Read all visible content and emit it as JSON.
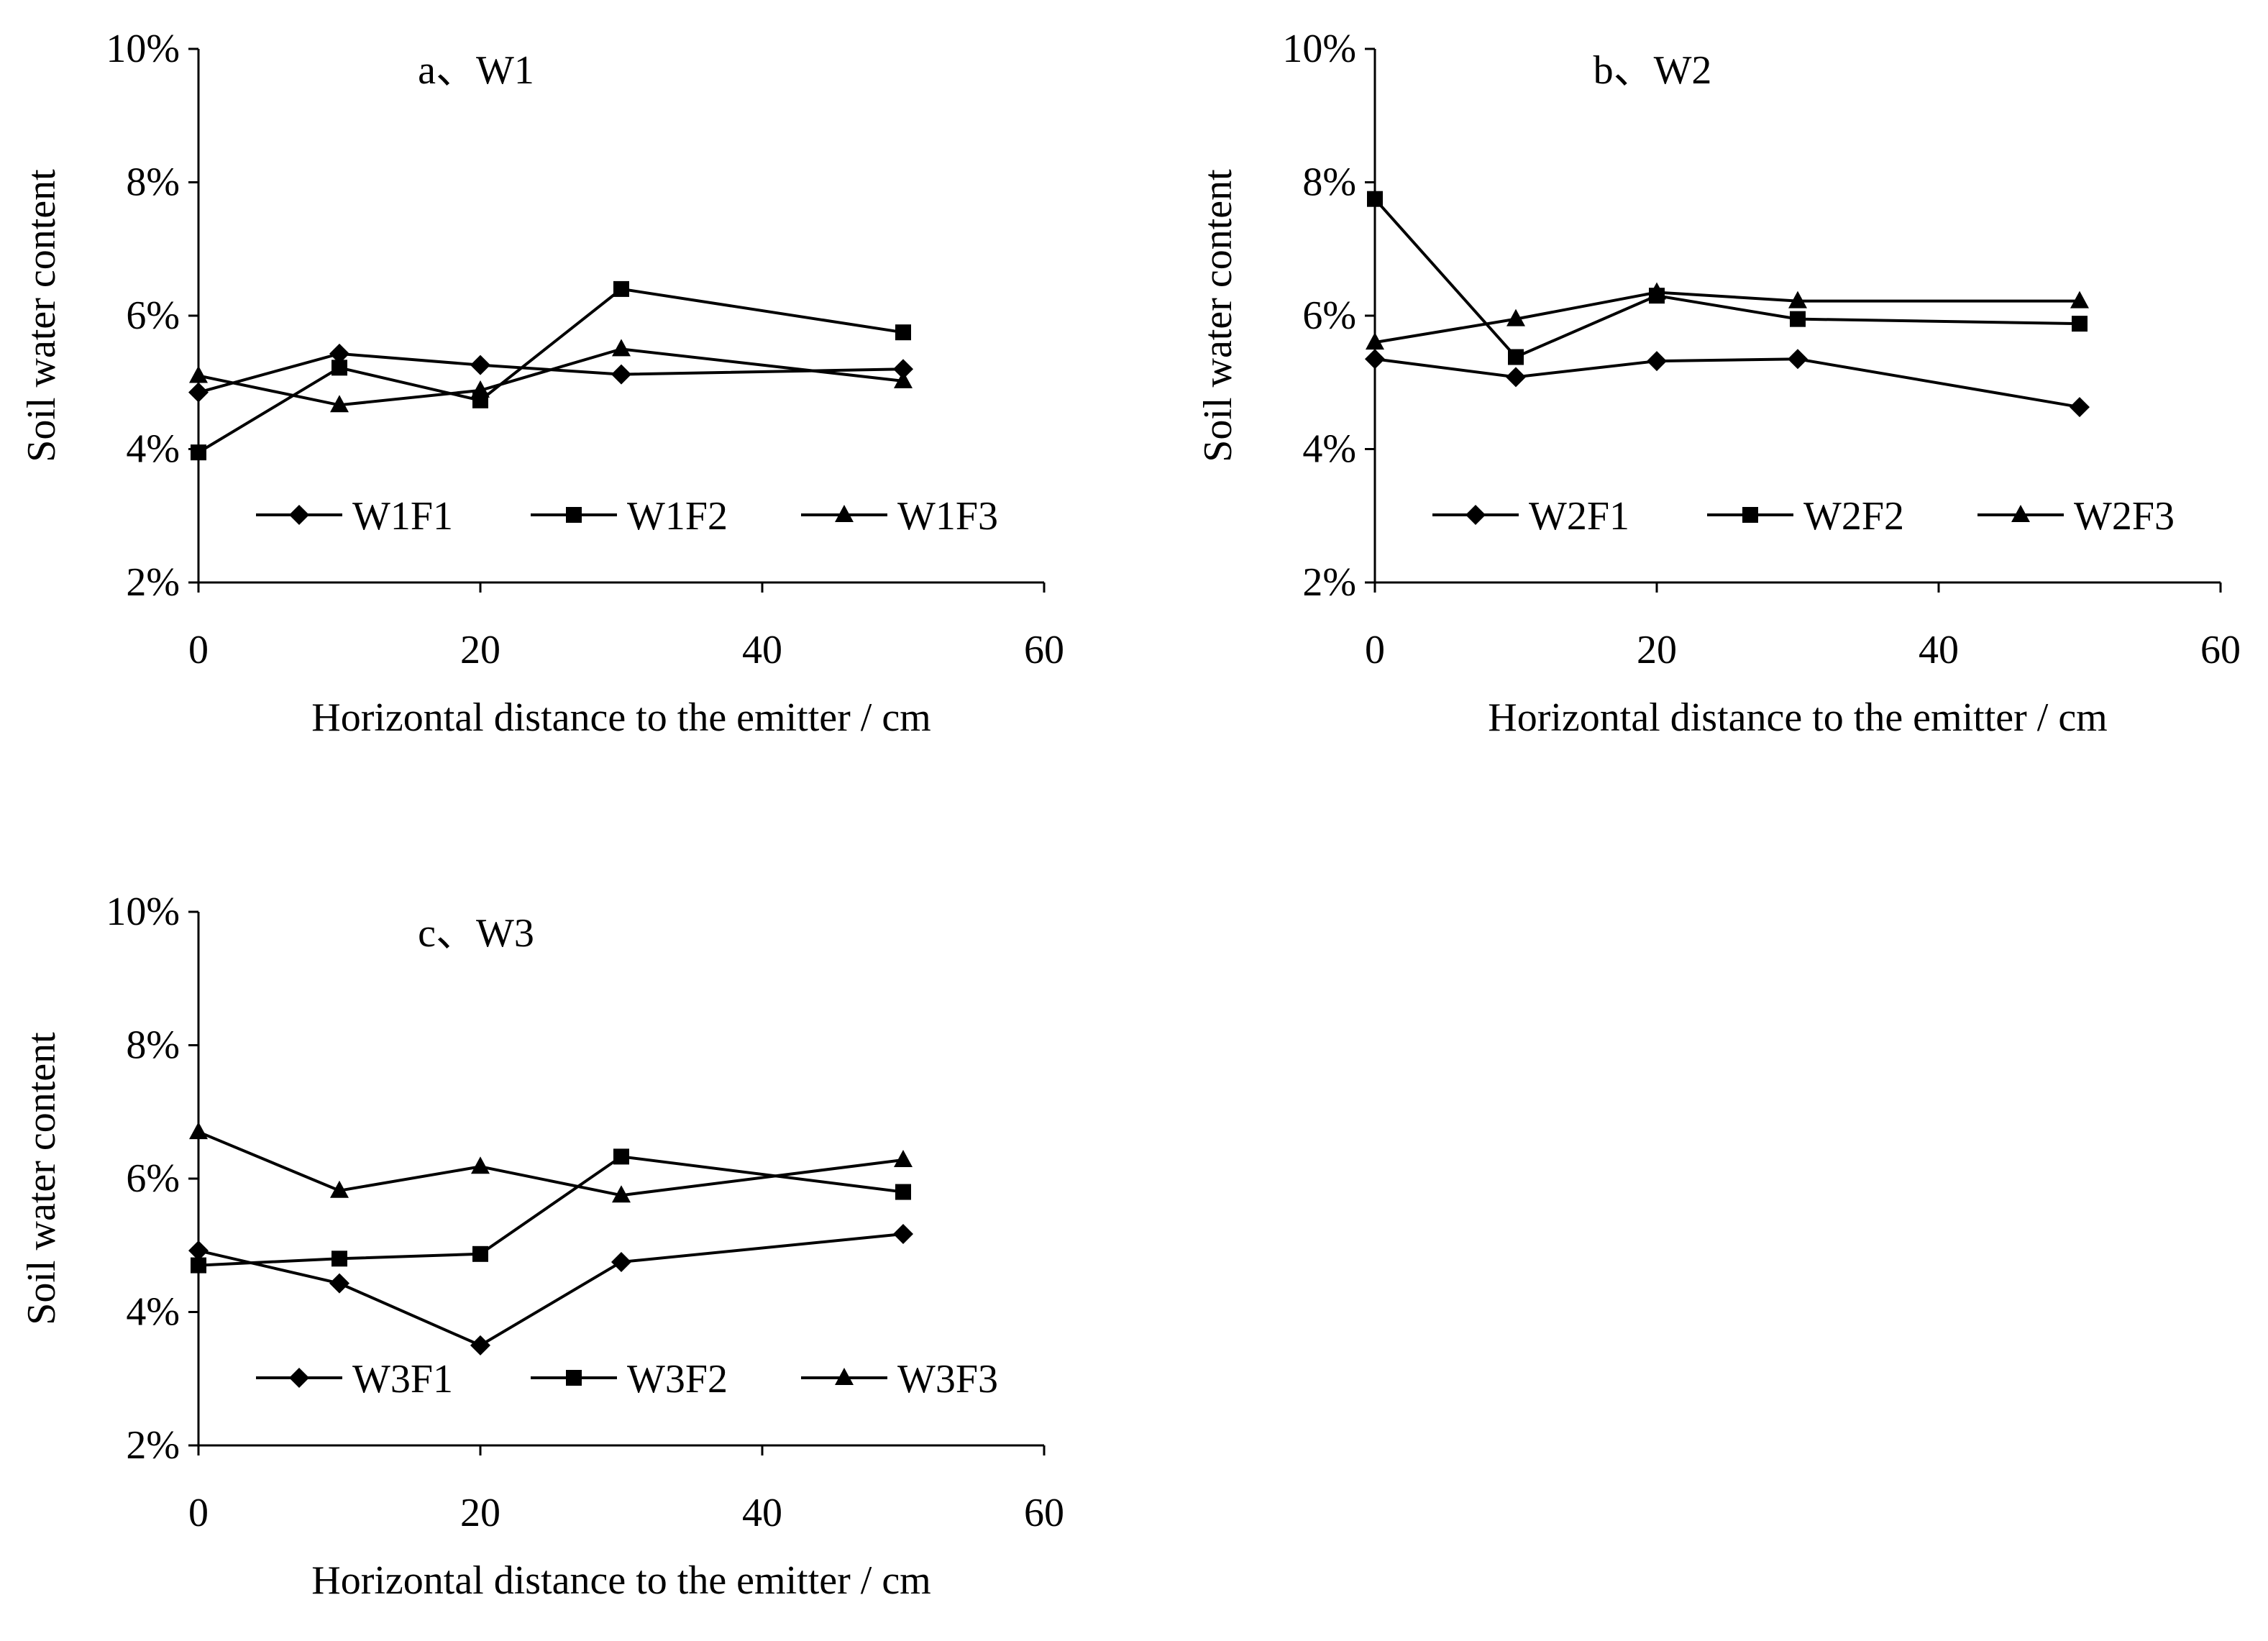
{
  "chart_data": [
    {
      "type": "line",
      "title": "a、W1",
      "xlabel": "Horizontal distance to the emitter / cm",
      "ylabel": "Soil water content",
      "xlim": [
        0,
        60
      ],
      "ylim": [
        2,
        10
      ],
      "x_ticks": [
        0,
        20,
        40,
        60
      ],
      "y_ticks": [
        2,
        4,
        6,
        8,
        10
      ],
      "x_tick_labels": [
        "0",
        "20",
        "40",
        "60"
      ],
      "y_tick_labels": [
        "2%",
        "4%",
        "6%",
        "8%",
        "10%"
      ],
      "grid": false,
      "legend_position": "bottom",
      "x": [
        0,
        10,
        20,
        30,
        50
      ],
      "series": [
        {
          "name": "W1F1",
          "marker": "diamond",
          "values": [
            4.85,
            5.43,
            5.26,
            5.12,
            5.2
          ]
        },
        {
          "name": "W1F2",
          "marker": "square",
          "values": [
            3.95,
            5.22,
            4.73,
            6.4,
            5.75
          ]
        },
        {
          "name": "W1F3",
          "marker": "triangle",
          "values": [
            5.1,
            4.66,
            4.88,
            5.5,
            5.02
          ]
        }
      ]
    },
    {
      "type": "line",
      "title": "b、W2",
      "xlabel": "Horizontal distance to the emitter / cm",
      "ylabel": "Soil water content",
      "xlim": [
        0,
        60
      ],
      "ylim": [
        2,
        10
      ],
      "x_ticks": [
        0,
        20,
        40,
        60
      ],
      "y_ticks": [
        2,
        4,
        6,
        8,
        10
      ],
      "x_tick_labels": [
        "0",
        "20",
        "40",
        "60"
      ],
      "y_tick_labels": [
        "2%",
        "4%",
        "6%",
        "8%",
        "10%"
      ],
      "grid": false,
      "legend_position": "bottom",
      "x": [
        0,
        10,
        20,
        30,
        50
      ],
      "series": [
        {
          "name": "W2F1",
          "marker": "diamond",
          "values": [
            5.35,
            5.08,
            5.32,
            5.35,
            4.63
          ]
        },
        {
          "name": "W2F2",
          "marker": "square",
          "values": [
            7.75,
            5.38,
            6.3,
            5.95,
            5.88
          ]
        },
        {
          "name": "W2F3",
          "marker": "triangle",
          "values": [
            5.6,
            5.95,
            6.35,
            6.22,
            6.22
          ]
        }
      ]
    },
    {
      "type": "line",
      "title": "c、W3",
      "xlabel": "Horizontal distance to the emitter / cm",
      "ylabel": "Soil water content",
      "xlim": [
        0,
        60
      ],
      "ylim": [
        2,
        10
      ],
      "x_ticks": [
        0,
        20,
        40,
        60
      ],
      "y_ticks": [
        2,
        4,
        6,
        8,
        10
      ],
      "x_tick_labels": [
        "0",
        "20",
        "40",
        "60"
      ],
      "y_tick_labels": [
        "2%",
        "4%",
        "6%",
        "8%",
        "10%"
      ],
      "grid": false,
      "legend_position": "bottom",
      "x": [
        0,
        10,
        20,
        30,
        50
      ],
      "series": [
        {
          "name": "W3F1",
          "marker": "diamond",
          "values": [
            4.92,
            4.43,
            3.5,
            4.75,
            5.17
          ]
        },
        {
          "name": "W3F2",
          "marker": "square",
          "values": [
            4.7,
            4.8,
            4.87,
            6.33,
            5.8
          ]
        },
        {
          "name": "W3F3",
          "marker": "triangle",
          "values": [
            6.7,
            5.82,
            6.18,
            5.75,
            6.28
          ]
        }
      ]
    }
  ]
}
